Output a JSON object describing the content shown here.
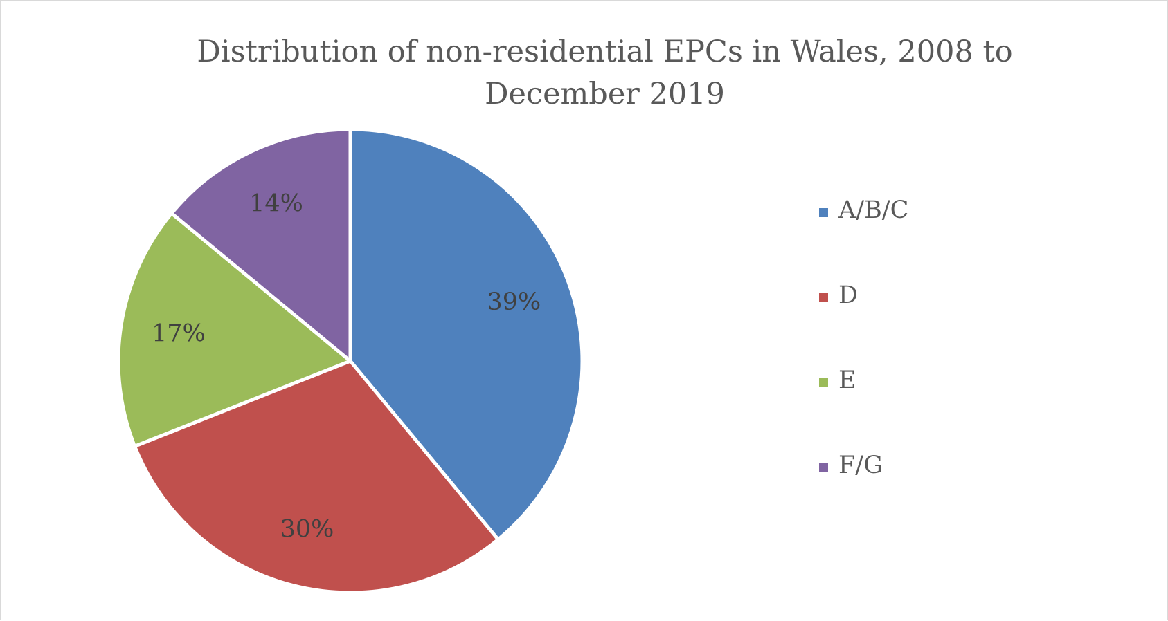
{
  "chart_data": {
    "type": "pie",
    "title": "Distribution of non-residential EPCs in Wales, 2008 to December 2019",
    "title_lines": [
      "Distribution of non-residential EPCs in Wales, 2008 to",
      "December 2019"
    ],
    "categories": [
      "A/B/C",
      "D",
      "E",
      "F/G"
    ],
    "values": [
      39,
      30,
      17,
      14
    ],
    "data_labels": [
      "39%",
      "30%",
      "17%",
      "14%"
    ],
    "colors": [
      "#4f81bd",
      "#c0504d",
      "#9bbb59",
      "#8064a2"
    ],
    "legend_position": "right",
    "data_label_color": "#404040",
    "slice_border_color": "#ffffff"
  }
}
